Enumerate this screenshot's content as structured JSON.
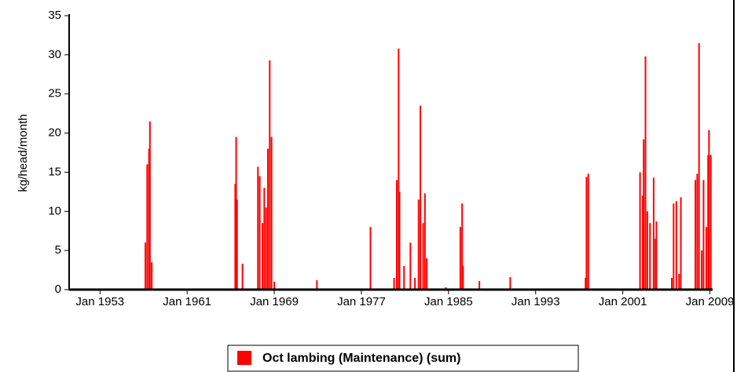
{
  "chart_data": {
    "type": "bar",
    "ylabel": "kg/head/month",
    "xlim": [
      "1950-03",
      "2009-04"
    ],
    "xticks": [
      {
        "value": "1953-01",
        "label": "Jan 1953"
      },
      {
        "value": "1961-01",
        "label": "Jan 1961"
      },
      {
        "value": "1969-01",
        "label": "Jan 1969"
      },
      {
        "value": "1977-01",
        "label": "Jan 1977"
      },
      {
        "value": "1985-01",
        "label": "Jan 1985"
      },
      {
        "value": "1993-01",
        "label": "Jan 1993"
      },
      {
        "value": "2001-01",
        "label": "Jan 2001"
      },
      {
        "value": "2009-01",
        "label": "Jan 2009"
      }
    ],
    "ylim": [
      0,
      35
    ],
    "yticks": [
      0,
      5,
      10,
      15,
      20,
      25,
      30,
      35
    ],
    "x": [
      "1957-03",
      "1957-05",
      "1957-07",
      "1957-08",
      "1957-10",
      "1965-06",
      "1965-07",
      "1965-08",
      "1966-02",
      "1967-07",
      "1967-09",
      "1967-12",
      "1968-02",
      "1968-04",
      "1968-06",
      "1968-08",
      "1968-10",
      "1969-01",
      "1972-12",
      "1977-11",
      "1980-01",
      "1980-04",
      "1980-06",
      "1980-07",
      "1980-12",
      "1981-07",
      "1981-12",
      "1982-04",
      "1982-06",
      "1982-09",
      "1982-11",
      "1983-01",
      "1984-10",
      "1986-02",
      "1986-04",
      "1986-05",
      "1987-11",
      "1990-09",
      "1997-08",
      "1997-09",
      "1997-11",
      "2002-08",
      "2002-11",
      "2002-12",
      "2003-02",
      "2003-04",
      "2003-07",
      "2003-11",
      "2004-01",
      "2004-02",
      "2005-07",
      "2005-09",
      "2005-12",
      "2006-03",
      "2006-05",
      "2007-09",
      "2007-11",
      "2008-01",
      "2008-04",
      "2008-06",
      "2008-09",
      "2008-11",
      "2008-12",
      "2009-02"
    ],
    "series": [
      {
        "name": "Oct lambing (Maintenance) (sum)",
        "color": "#ff0000",
        "values": [
          6,
          16,
          18,
          21.5,
          3.5,
          13.5,
          19.5,
          11.5,
          3.3,
          15.7,
          14.5,
          8.5,
          13,
          10.5,
          18,
          29.3,
          19.5,
          1,
          1.2,
          8,
          1.5,
          14,
          30.8,
          12.5,
          3,
          6,
          1.5,
          11.5,
          23.5,
          8.5,
          12.3,
          4,
          0.3,
          8,
          11,
          3,
          1.1,
          1.6,
          1.5,
          14.4,
          14.8,
          15,
          12,
          19.2,
          29.8,
          10,
          8.5,
          14.3,
          6.5,
          8.7,
          1.5,
          11,
          11.3,
          2,
          11.8,
          14,
          14.8,
          31.5,
          5,
          14,
          8,
          17.2,
          20.4,
          17.2
        ]
      }
    ],
    "legend": "bottom"
  }
}
